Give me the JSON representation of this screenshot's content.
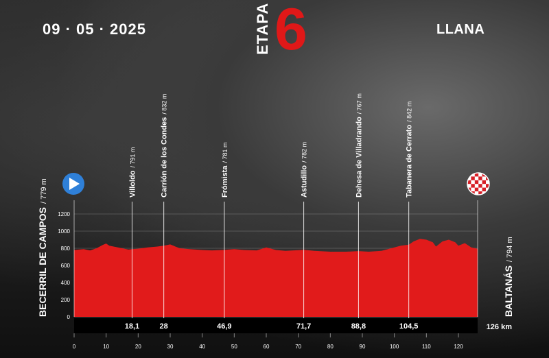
{
  "header": {
    "date": "09 · 05 · 2025",
    "stage_word": "ETAPA",
    "stage_number": "6",
    "stage_type": "LLANA"
  },
  "colors": {
    "profile_fill": "#e11b1b",
    "accent_red": "#e01818",
    "start_icon": "#2f80d8",
    "finish_icon": "#d61f26"
  },
  "icons": {
    "start": "play-icon",
    "finish": "checkered-flag-icon"
  },
  "chart_data": {
    "type": "area",
    "xlim": [
      0,
      126
    ],
    "ylim": [
      0,
      1200
    ],
    "yticks": [
      0,
      200,
      400,
      600,
      800,
      1000,
      1200
    ],
    "xticks": [
      0,
      10,
      20,
      30,
      40,
      50,
      60,
      70,
      80,
      90,
      100,
      110,
      120
    ],
    "elevation_profile": {
      "x": [
        0,
        3,
        5,
        7,
        9,
        10,
        11,
        13,
        15,
        17,
        18.1,
        20,
        23,
        26,
        28,
        30,
        31,
        33,
        36,
        40,
        43,
        46.9,
        50,
        53,
        57,
        60,
        63,
        66,
        70,
        71.7,
        75,
        80,
        85,
        88.8,
        92,
        96,
        100,
        102,
        104.5,
        106,
        108,
        110,
        112,
        113,
        115,
        117,
        119,
        120,
        122,
        124,
        126
      ],
      "y": [
        780,
        790,
        775,
        800,
        840,
        855,
        830,
        815,
        800,
        785,
        790,
        795,
        810,
        820,
        830,
        845,
        830,
        800,
        790,
        780,
        775,
        781,
        790,
        780,
        775,
        810,
        780,
        770,
        778,
        782,
        770,
        760,
        760,
        767,
        760,
        770,
        810,
        830,
        842,
        880,
        910,
        900,
        870,
        820,
        880,
        900,
        870,
        830,
        860,
        810,
        794
      ]
    },
    "start": {
      "name": "BECERRIL DE CAMPOS",
      "altitude": "/ 779 m",
      "km": 0
    },
    "finish": {
      "name": "BALTANÁS",
      "altitude": "/ 794 m",
      "km": 126,
      "km_label": "126 km"
    },
    "waypoints": [
      {
        "name": "Villoldo",
        "altitude": "/ 791 m",
        "km": 18.1,
        "km_label": "18,1"
      },
      {
        "name": "Carrión de los Condes",
        "altitude": "/ 832 m",
        "km": 28,
        "km_label": "28"
      },
      {
        "name": "Frómista",
        "altitude": "/ 781 m",
        "km": 46.9,
        "km_label": "46,9"
      },
      {
        "name": "Astudillo",
        "altitude": "/ 782 m",
        "km": 71.7,
        "km_label": "71,7"
      },
      {
        "name": "Dehesa de Villadrando",
        "altitude": "/ 767 m",
        "km": 88.8,
        "km_label": "88,8"
      },
      {
        "name": "Tabanera de Cerrato",
        "altitude": "/ 842 m",
        "km": 104.5,
        "km_label": "104,5"
      }
    ]
  }
}
